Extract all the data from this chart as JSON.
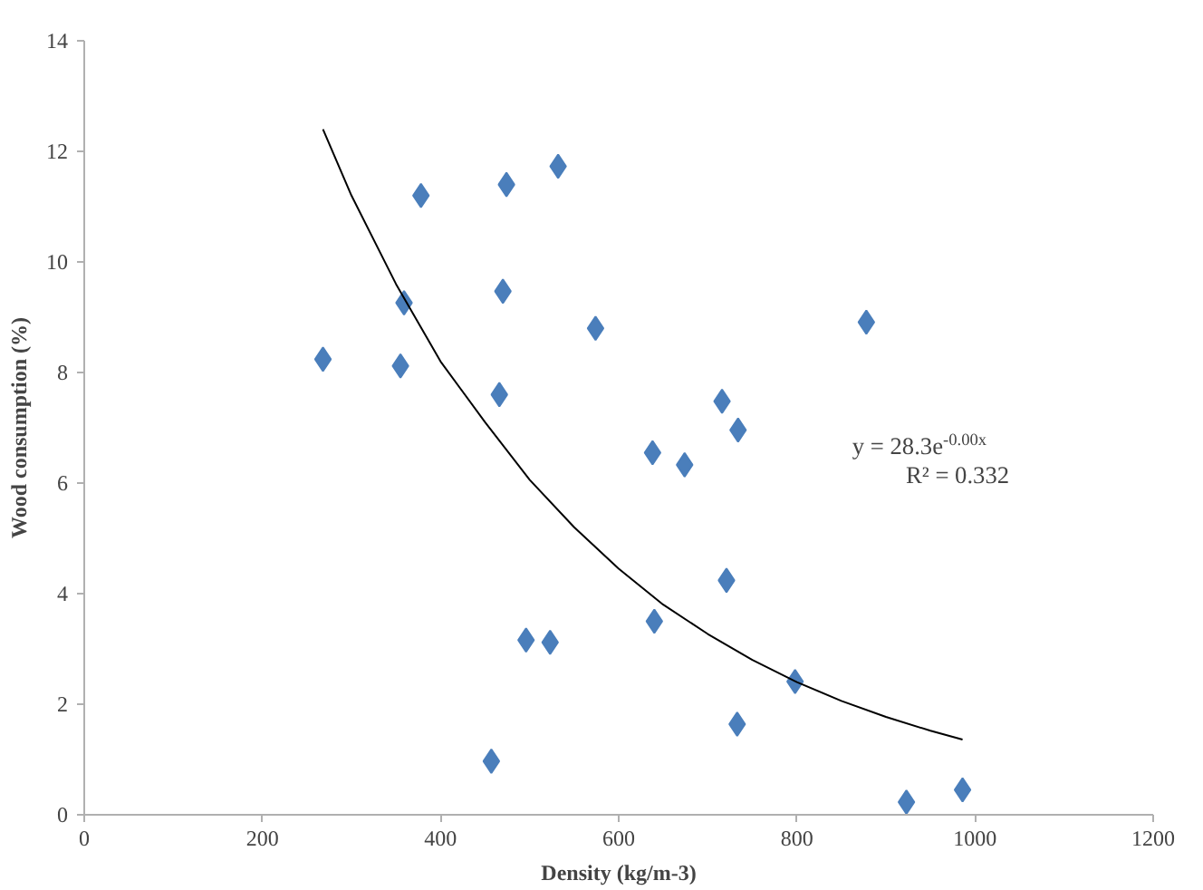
{
  "chart_data": {
    "type": "scatter",
    "xlabel": "Density (kg/m-3)",
    "ylabel": "Wood consumption (%)",
    "xlim": [
      0,
      1200
    ],
    "ylim": [
      0,
      14
    ],
    "xticks": [
      0,
      200,
      400,
      600,
      800,
      1000,
      1200
    ],
    "yticks": [
      0,
      2,
      4,
      6,
      8,
      10,
      12,
      14
    ],
    "grid": false,
    "series": [
      {
        "color": "#4a7ebb",
        "marker": "diamond",
        "x": [
          268,
          355,
          359,
          378,
          474,
          532,
          470,
          574,
          466,
          638,
          674,
          640,
          496,
          523,
          457,
          878,
          716,
          734,
          721,
          798,
          733,
          923,
          986
        ],
        "values": [
          8.24,
          8.12,
          9.26,
          11.2,
          11.4,
          11.73,
          9.47,
          8.8,
          7.6,
          6.55,
          6.33,
          3.5,
          3.16,
          3.12,
          0.97,
          8.91,
          7.48,
          6.96,
          4.24,
          2.41,
          1.64,
          0.23,
          0.45
        ]
      },
      {
        "type": "line",
        "color": "#000000",
        "line_style": "solid",
        "x": [
          268,
          300,
          350,
          400,
          450,
          500,
          550,
          600,
          650,
          700,
          750,
          800,
          850,
          900,
          950,
          986
        ],
        "values": [
          12.4,
          11.2,
          9.6,
          8.2,
          7.1,
          6.06,
          5.2,
          4.45,
          3.8,
          3.27,
          2.8,
          2.4,
          2.06,
          1.77,
          1.52,
          1.36
        ]
      }
    ],
    "annotations": [
      "y = 28.3e$^{-0.00x}$",
      "R² = 0.332"
    ]
  }
}
